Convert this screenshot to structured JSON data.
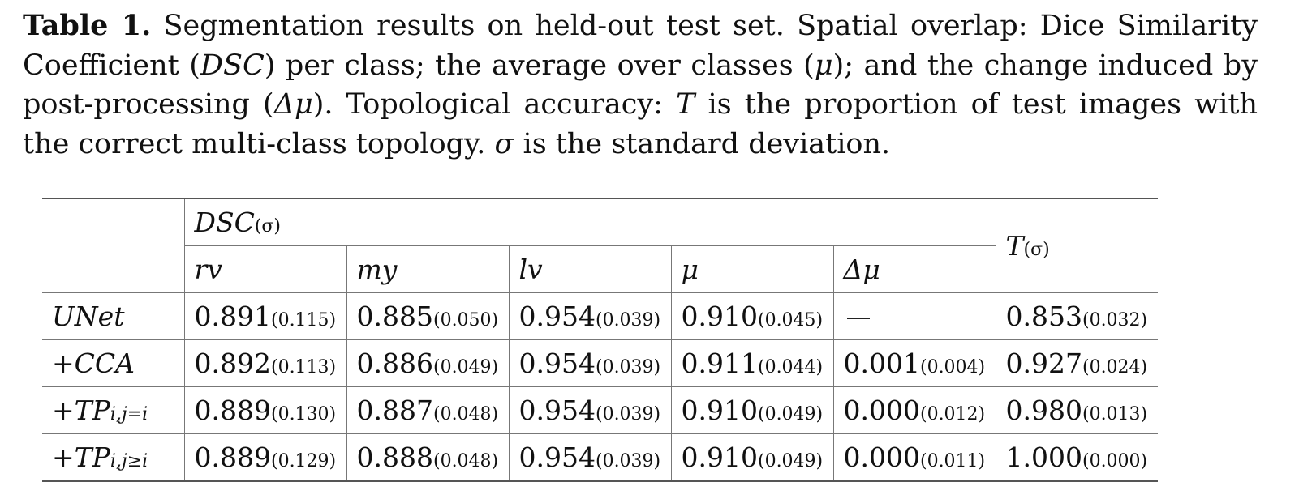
{
  "caption": {
    "label": "Table 1.",
    "seg1": " Segmentation results on held-out test set. Spatial overlap: Dice Similarity Coefficient (",
    "dsc": "DSC",
    "seg2": ") per class; the average over classes (",
    "mu": "μ",
    "seg3": "); and the change induced by post-processing (",
    "dmu": "Δμ",
    "seg4": "). Topological accuracy: ",
    "t": "T",
    "seg5": " is the proportion of test images with the correct multi-class topology. ",
    "sigma": "σ",
    "seg6": " is the standard deviation."
  },
  "table": {
    "group_header": {
      "main": "DSC",
      "sub": "(σ)"
    },
    "t_header": {
      "main": "T",
      "sub": "(σ)"
    },
    "columns": [
      "rv",
      "my",
      "lv",
      "μ",
      "Δμ"
    ],
    "rows": [
      {
        "label": {
          "main": "UNet",
          "sub": ""
        },
        "cells": [
          {
            "v": "0.891",
            "s": "(0.115)"
          },
          {
            "v": "0.885",
            "s": "(0.050)"
          },
          {
            "v": "0.954",
            "s": "(0.039)"
          },
          {
            "v": "0.910",
            "s": "(0.045)"
          },
          {
            "v": "—",
            "s": ""
          },
          {
            "v": "0.853",
            "s": "(0.032)"
          }
        ]
      },
      {
        "label": {
          "main": "+CCA",
          "sub": ""
        },
        "cells": [
          {
            "v": "0.892",
            "s": "(0.113)"
          },
          {
            "v": "0.886",
            "s": "(0.049)"
          },
          {
            "v": "0.954",
            "s": "(0.039)"
          },
          {
            "v": "0.911",
            "s": "(0.044)"
          },
          {
            "v": "0.001",
            "s": "(0.004)"
          },
          {
            "v": "0.927",
            "s": "(0.024)"
          }
        ]
      },
      {
        "label": {
          "main": "+TP",
          "sub": "i,j=i"
        },
        "cells": [
          {
            "v": "0.889",
            "s": "(0.130)"
          },
          {
            "v": "0.887",
            "s": "(0.048)"
          },
          {
            "v": "0.954",
            "s": "(0.039)"
          },
          {
            "v": "0.910",
            "s": "(0.049)"
          },
          {
            "v": "0.000",
            "s": "(0.012)"
          },
          {
            "v": "0.980",
            "s": "(0.013)"
          }
        ]
      },
      {
        "label": {
          "main": "+TP",
          "sub": "i,j≥i"
        },
        "cells": [
          {
            "v": "0.889",
            "s": "(0.129)"
          },
          {
            "v": "0.888",
            "s": "(0.048)"
          },
          {
            "v": "0.954",
            "s": "(0.039)"
          },
          {
            "v": "0.910",
            "s": "(0.049)"
          },
          {
            "v": "0.000",
            "s": "(0.011)"
          },
          {
            "v": "1.000",
            "s": "(0.000)"
          }
        ]
      }
    ]
  }
}
